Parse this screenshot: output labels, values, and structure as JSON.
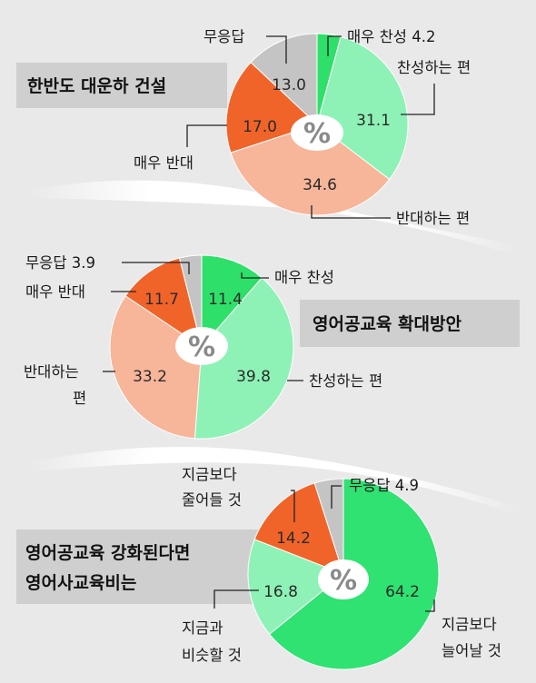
{
  "colors": {
    "strong_agree": "#2ee06a",
    "agree": "#8ef2b6",
    "disagree": "#f7b59a",
    "strong_disagree": "#f0642a",
    "no_answer": "#c4c4c4",
    "increase": "#2fe271",
    "same": "#8ef2b6",
    "decrease": "#f0642a",
    "title_box": "#cfcfcf",
    "background": "#e9e9e9"
  },
  "percent_symbol": "%",
  "chart_data": [
    {
      "type": "pie",
      "title": "한반도 대운하 건설",
      "slices": [
        {
          "label": "매우 찬성",
          "value": 4.2,
          "color_key": "strong_agree"
        },
        {
          "label": "찬성하는 편",
          "value": 31.1,
          "color_key": "agree"
        },
        {
          "label": "반대하는 편",
          "value": 34.6,
          "color_key": "disagree"
        },
        {
          "label": "매우 반대",
          "value": 17.0,
          "color_key": "strong_disagree"
        },
        {
          "label": "무응답",
          "value": 13.0,
          "color_key": "no_answer"
        }
      ]
    },
    {
      "type": "pie",
      "title": "영어공교육 확대방안",
      "slices": [
        {
          "label": "매우 찬성",
          "value": 11.4,
          "color_key": "strong_agree"
        },
        {
          "label": "찬성하는 편",
          "value": 39.8,
          "color_key": "agree"
        },
        {
          "label": "반대하는 편",
          "value": 33.2,
          "color_key": "disagree"
        },
        {
          "label": "매우 반대",
          "value": 11.7,
          "color_key": "strong_disagree"
        },
        {
          "label": "무응답",
          "value": 3.9,
          "color_key": "no_answer"
        }
      ]
    },
    {
      "type": "pie",
      "title": "영어공교육 강화된다면 영어사교육비는",
      "slices": [
        {
          "label": "지금보다 늘어날 것",
          "value": 64.2,
          "color_key": "increase"
        },
        {
          "label": "지금과 비슷할 것",
          "value": 16.8,
          "color_key": "same"
        },
        {
          "label": "지금보다 줄어들 것",
          "value": 14.2,
          "color_key": "decrease"
        },
        {
          "label": "무응답",
          "value": 4.9,
          "color_key": "no_answer"
        }
      ]
    }
  ],
  "charts": [
    {
      "title_lines": [
        "한반도 대운하 건설"
      ],
      "slice_values": [
        "4.2",
        "31.1",
        "34.6",
        "17.0",
        "13.0"
      ],
      "label_lines": [
        [
          "매우 찬성 4.2"
        ],
        [
          "찬성하는 편"
        ],
        [
          "반대하는 편"
        ],
        [
          "매우 반대"
        ],
        [
          "무응답"
        ]
      ]
    },
    {
      "title_lines": [
        "영어공교육 확대방안"
      ],
      "slice_values": [
        "11.4",
        "39.8",
        "33.2",
        "11.7",
        "3.9"
      ],
      "label_lines": [
        [
          "매우 찬성"
        ],
        [
          "찬성하는 편"
        ],
        [
          "반대하는",
          "편"
        ],
        [
          "매우 반대"
        ],
        [
          "무응답 3.9"
        ]
      ]
    },
    {
      "title_lines": [
        "영어공교육 강화된다면",
        "영어사교육비는"
      ],
      "slice_values": [
        "64.2",
        "16.8",
        "14.2",
        "4.9"
      ],
      "label_lines": [
        [
          "지금보다",
          "늘어날 것"
        ],
        [
          "지금과",
          "비슷할 것"
        ],
        [
          "지금보다",
          "줄어들 것"
        ],
        [
          "무응답 4.9"
        ]
      ]
    }
  ]
}
